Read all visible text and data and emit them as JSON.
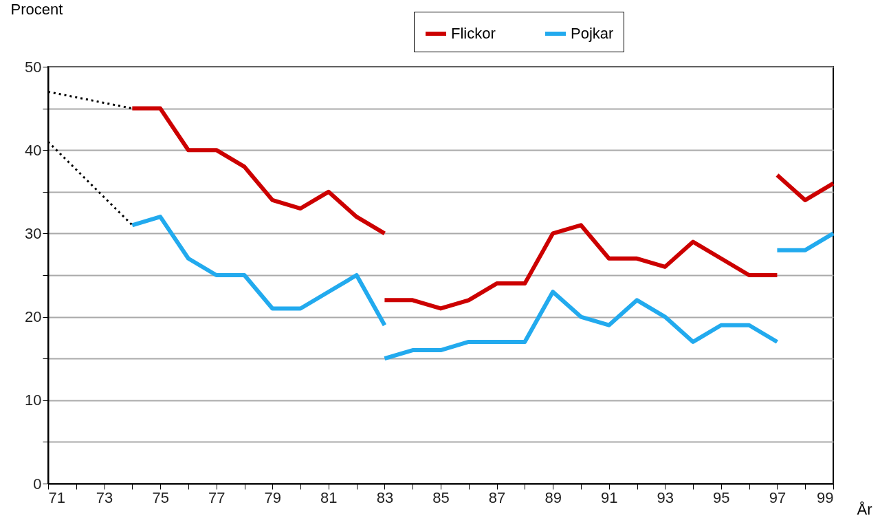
{
  "chart_data": {
    "type": "line",
    "xlabel": "År",
    "ylabel": "Procent",
    "legend": "top right",
    "grid": "y",
    "line_style": "solid",
    "marker": "none",
    "xlim": [
      71,
      99
    ],
    "xticks": [
      71,
      {
        "value": 72,
        "label": null
      },
      73,
      {
        "value": 74,
        "label": null
      },
      75,
      {
        "value": 76,
        "label": null
      },
      77,
      {
        "value": 78,
        "label": null
      },
      79,
      {
        "value": 80,
        "label": null
      },
      81,
      {
        "value": 82,
        "label": null
      },
      83,
      {
        "value": 84,
        "label": null
      },
      85,
      {
        "value": 86,
        "label": null
      },
      87,
      {
        "value": 88,
        "label": null
      },
      89,
      {
        "value": 90,
        "label": null
      },
      91,
      {
        "value": 92,
        "label": null
      },
      93,
      {
        "value": 94,
        "label": null
      },
      95,
      {
        "value": 96,
        "label": null
      },
      97,
      {
        "value": 98,
        "label": null
      },
      99
    ],
    "ylim": [
      0,
      50
    ],
    "yticks": [
      0,
      {
        "value": 5,
        "label": null
      },
      10,
      {
        "value": 15,
        "label": null
      },
      20,
      {
        "value": 25,
        "label": null
      },
      30,
      {
        "value": 35,
        "label": null
      },
      40,
      {
        "value": 45,
        "label": null
      },
      50
    ],
    "series": [
      {
        "name": "Flickor",
        "color": "#cc0000",
        "x": [
          74,
          75,
          76,
          77,
          78,
          79,
          80,
          81,
          82,
          83
        ],
        "values": [
          45,
          45,
          40,
          40,
          38,
          34,
          33,
          35,
          32,
          30
        ]
      },
      {
        "color": "#cc0000",
        "x": [
          83,
          84,
          85,
          86,
          87,
          88,
          89,
          90,
          91,
          92,
          93,
          94,
          95,
          96,
          97
        ],
        "values": [
          22,
          22,
          21,
          22,
          24,
          24,
          30,
          31,
          27,
          27,
          26,
          29,
          27,
          25,
          25
        ]
      },
      {
        "color": "#cc0000",
        "x": [
          97,
          98,
          99
        ],
        "values": [
          37,
          34,
          36
        ]
      },
      {
        "name": "Pojkar",
        "color": "#22aaee",
        "x": [
          74,
          75,
          76,
          77,
          78,
          79,
          80,
          81,
          82,
          83
        ],
        "values": [
          31,
          32,
          27,
          25,
          25,
          21,
          21,
          23,
          25,
          19
        ]
      },
      {
        "color": "#22aaee",
        "x": [
          83,
          84,
          85,
          86,
          87,
          88,
          89,
          90,
          91,
          92,
          93,
          94,
          95,
          96,
          97
        ],
        "values": [
          15,
          16,
          16,
          17,
          17,
          17,
          23,
          20,
          19,
          22,
          20,
          17,
          19,
          19,
          17
        ]
      },
      {
        "color": "#22aaee",
        "x": [
          97,
          98,
          99
        ],
        "values": [
          28,
          28,
          30
        ]
      },
      {
        "color": "#000000",
        "line_style": "dotted",
        "x": [
          71,
          74
        ],
        "values": [
          47,
          45
        ]
      },
      {
        "color": "#000000",
        "line_style": "dotted",
        "x": [
          71,
          74
        ],
        "values": [
          41,
          31
        ]
      }
    ]
  }
}
